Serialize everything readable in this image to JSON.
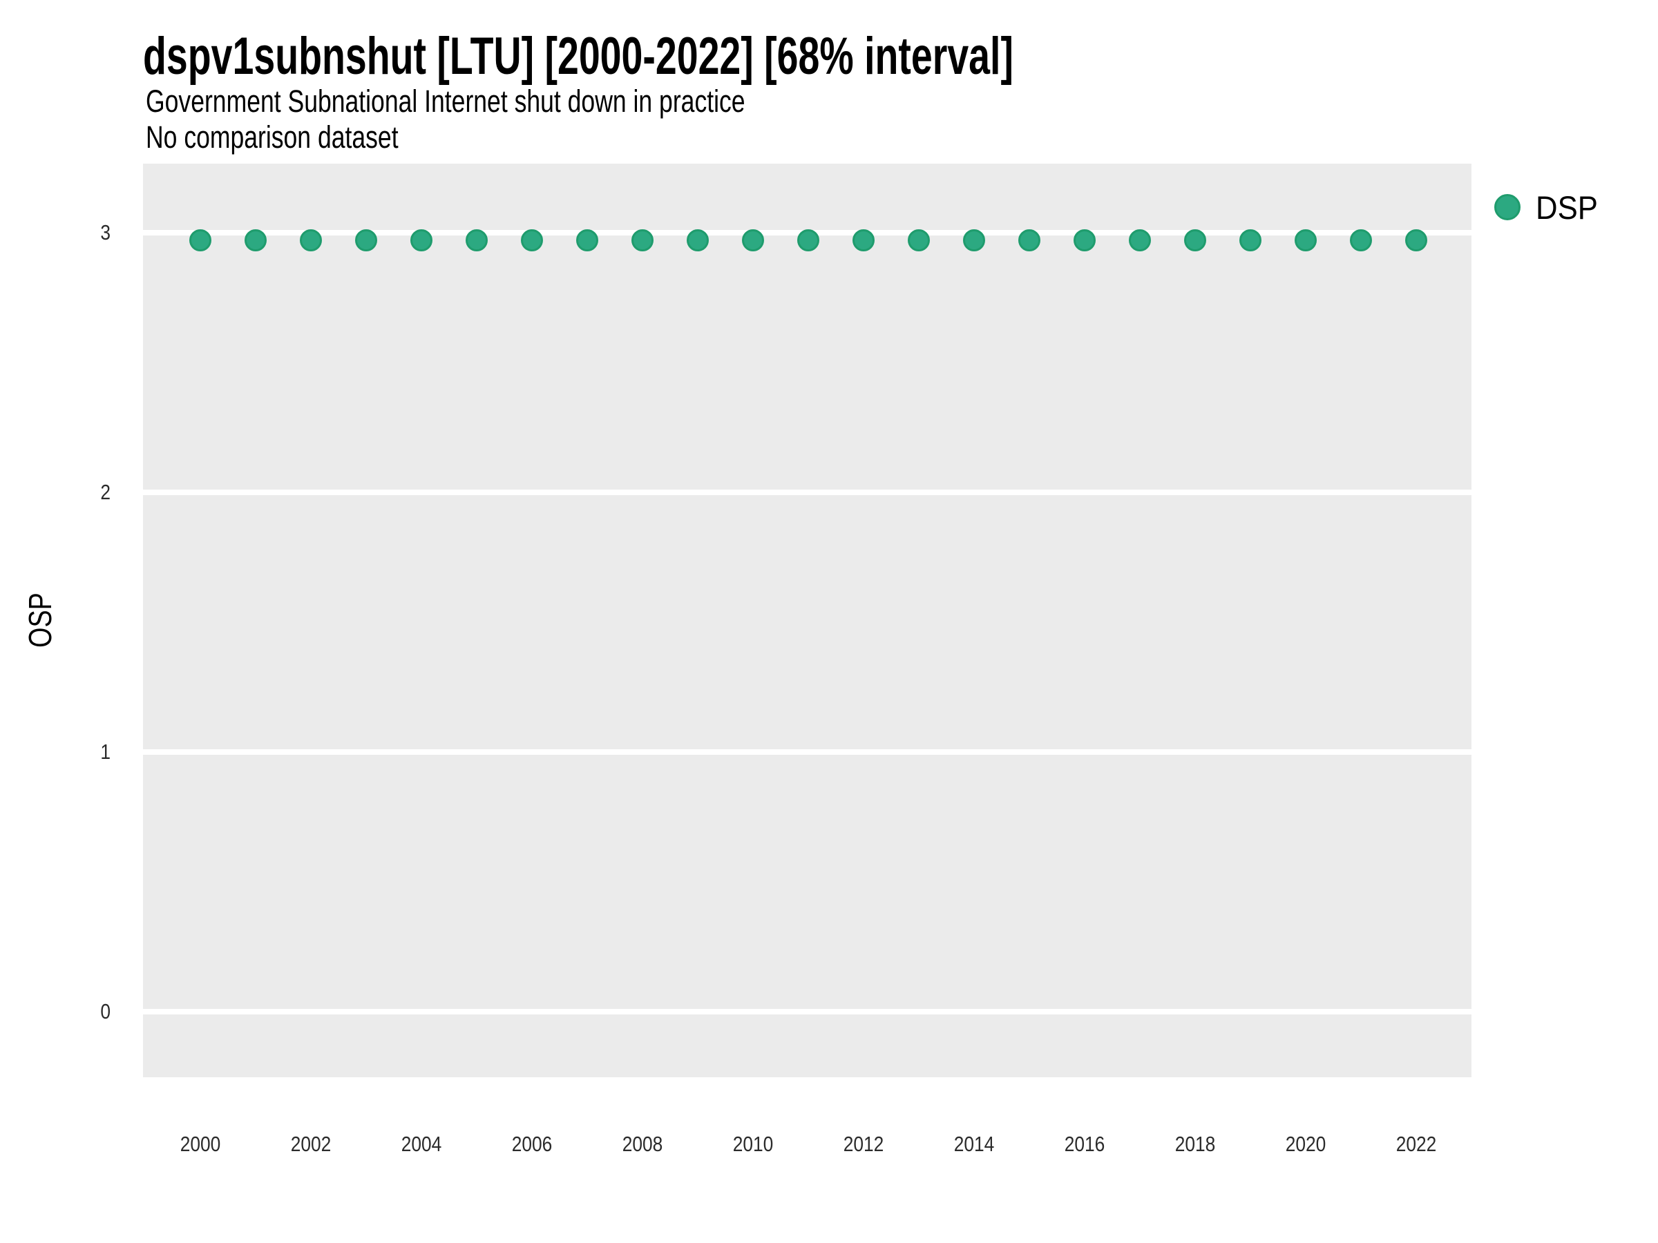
{
  "chart_data": {
    "type": "scatter",
    "title": "dspv1subnshut [LTU] [2000-2022] [68% interval]",
    "subtitle": "Government Subnational Internet shut down in practice",
    "subtitle2": "No comparison dataset",
    "xlabel": "",
    "ylabel": "OSP",
    "x": [
      2000,
      2001,
      2002,
      2003,
      2004,
      2005,
      2006,
      2007,
      2008,
      2009,
      2010,
      2011,
      2012,
      2013,
      2014,
      2015,
      2016,
      2017,
      2018,
      2019,
      2020,
      2021,
      2022
    ],
    "series": [
      {
        "name": "DSP",
        "values": [
          2.97,
          2.97,
          2.97,
          2.97,
          2.97,
          2.97,
          2.97,
          2.97,
          2.97,
          2.97,
          2.97,
          2.97,
          2.97,
          2.97,
          2.97,
          2.97,
          2.97,
          2.97,
          2.97,
          2.97,
          2.97,
          2.97,
          2.97
        ],
        "marker_color": "#2ca981",
        "marker_edge_color": "#1f9c6d"
      }
    ],
    "xticks": [
      2000,
      2002,
      2004,
      2006,
      2008,
      2010,
      2012,
      2014,
      2016,
      2018,
      2020,
      2022
    ],
    "yticks": [
      0,
      1,
      2,
      3
    ],
    "xlim": [
      1998.96,
      2023.0
    ],
    "ylim": [
      -0.25,
      3.27
    ],
    "grid": "horizontal major gridlines only, white on gray panel",
    "panel_background": "#ebebeb",
    "gridline_color": "#ffffff",
    "legend_position": "right-top",
    "legend_entries": [
      "DSP"
    ]
  }
}
